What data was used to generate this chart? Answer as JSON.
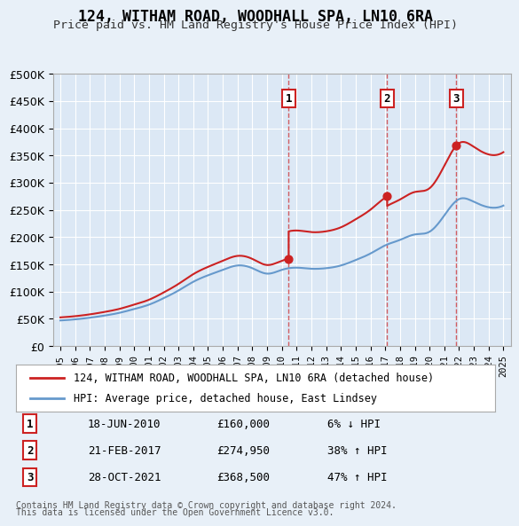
{
  "title": "124, WITHAM ROAD, WOODHALL SPA, LN10 6RA",
  "subtitle": "Price paid vs. HM Land Registry's House Price Index (HPI)",
  "background_color": "#e8f0f8",
  "plot_bg_color": "#dce8f5",
  "legend_line1": "124, WITHAM ROAD, WOODHALL SPA, LN10 6RA (detached house)",
  "legend_line2": "HPI: Average price, detached house, East Lindsey",
  "footer1": "Contains HM Land Registry data © Crown copyright and database right 2024.",
  "footer2": "This data is licensed under the Open Government Licence v3.0.",
  "transactions": [
    {
      "num": 1,
      "date": "18-JUN-2010",
      "price": "£160,000",
      "pct": "6% ↓ HPI",
      "year": 2010.46
    },
    {
      "num": 2,
      "date": "21-FEB-2017",
      "price": "£274,950",
      "pct": "38% ↑ HPI",
      "year": 2017.13
    },
    {
      "num": 3,
      "date": "28-OCT-2021",
      "price": "£368,500",
      "pct": "47% ↑ HPI",
      "year": 2021.82
    }
  ],
  "hpi_years": [
    1995,
    1996,
    1997,
    1998,
    1999,
    2000,
    2001,
    2002,
    2003,
    2004,
    2005,
    2006,
    2007,
    2008,
    2009,
    2010,
    2011,
    2012,
    2013,
    2014,
    2015,
    2016,
    2017,
    2018,
    2019,
    2020,
    2021,
    2022,
    2023,
    2024,
    2025
  ],
  "hpi_values": [
    47000,
    49000,
    52000,
    56000,
    61000,
    68000,
    76000,
    88000,
    102000,
    118000,
    130000,
    140000,
    148000,
    143000,
    133000,
    140000,
    144000,
    142000,
    143000,
    148000,
    158000,
    170000,
    185000,
    195000,
    205000,
    210000,
    240000,
    270000,
    265000,
    255000,
    258000
  ],
  "sale_years": [
    2010.46,
    2017.13,
    2021.82
  ],
  "sale_values": [
    160000,
    274950,
    368500
  ],
  "ylim": [
    0,
    500000
  ],
  "yticks": [
    0,
    50000,
    100000,
    150000,
    200000,
    250000,
    300000,
    350000,
    400000,
    450000,
    500000
  ],
  "xlim_start": 1994.5,
  "xlim_end": 2025.5
}
